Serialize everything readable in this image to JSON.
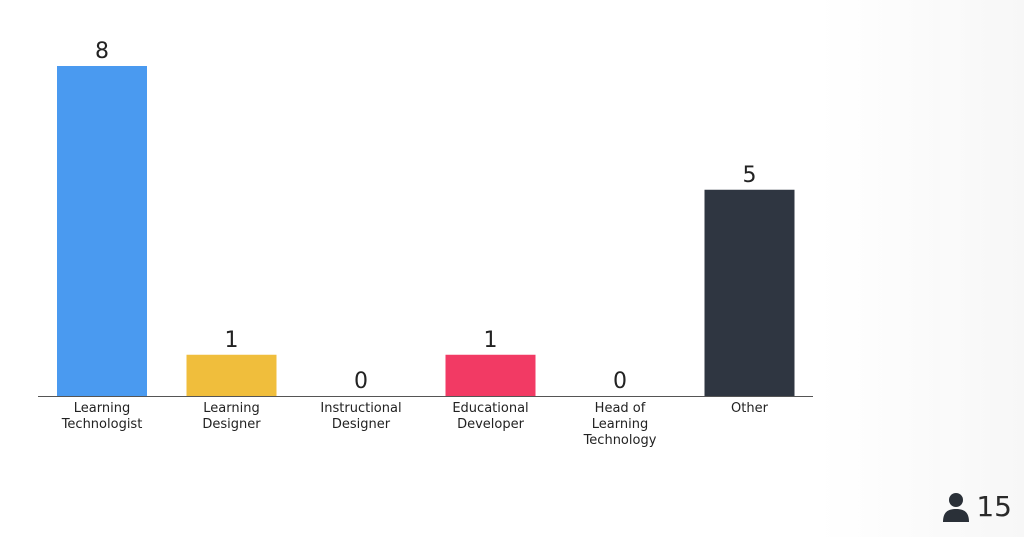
{
  "chart_data": {
    "type": "bar",
    "categories": [
      [
        "Learning",
        "Technologist"
      ],
      [
        "Learning",
        "Designer"
      ],
      [
        "Instructional",
        "Designer"
      ],
      [
        "Educational",
        "Developer"
      ],
      [
        "Head of",
        "Learning",
        "Technology"
      ],
      [
        "Other"
      ]
    ],
    "values": [
      8,
      1,
      0,
      1,
      0,
      5
    ],
    "colors": [
      "#4a9af0",
      "#f0be3c",
      "#d9d9d9",
      "#f23a64",
      "#d9d9d9",
      "#2f3641"
    ],
    "ylim": [
      0,
      8
    ],
    "grid": false,
    "legend": "none"
  },
  "participants": {
    "icon": "person-icon",
    "count": "15"
  }
}
